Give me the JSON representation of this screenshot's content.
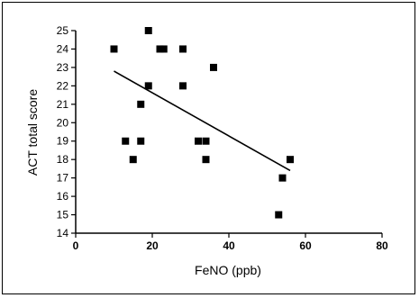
{
  "chart_data": {
    "type": "scatter",
    "title": "",
    "xlabel": "FeNO (ppb)",
    "ylabel": "ACT total score",
    "xlim": [
      0,
      80
    ],
    "ylim": [
      14,
      25
    ],
    "xticks": [
      0,
      20,
      40,
      60,
      80
    ],
    "yticks": [
      14,
      15,
      16,
      17,
      18,
      19,
      20,
      21,
      22,
      23,
      24,
      25
    ],
    "grid": false,
    "legend": "none",
    "marker_color": "#000000",
    "points": [
      {
        "x": 10,
        "y": 24
      },
      {
        "x": 19,
        "y": 25
      },
      {
        "x": 22,
        "y": 24
      },
      {
        "x": 23,
        "y": 24
      },
      {
        "x": 28,
        "y": 24
      },
      {
        "x": 36,
        "y": 23
      },
      {
        "x": 19,
        "y": 22
      },
      {
        "x": 28,
        "y": 22
      },
      {
        "x": 17,
        "y": 21
      },
      {
        "x": 13,
        "y": 19
      },
      {
        "x": 17,
        "y": 19
      },
      {
        "x": 32,
        "y": 19
      },
      {
        "x": 34,
        "y": 19
      },
      {
        "x": 15,
        "y": 18
      },
      {
        "x": 34,
        "y": 18
      },
      {
        "x": 56,
        "y": 18
      },
      {
        "x": 54,
        "y": 17
      },
      {
        "x": 53,
        "y": 15
      }
    ],
    "trendline": {
      "x1": 10,
      "y1": 22.8,
      "x2": 56,
      "y2": 17.4
    }
  }
}
